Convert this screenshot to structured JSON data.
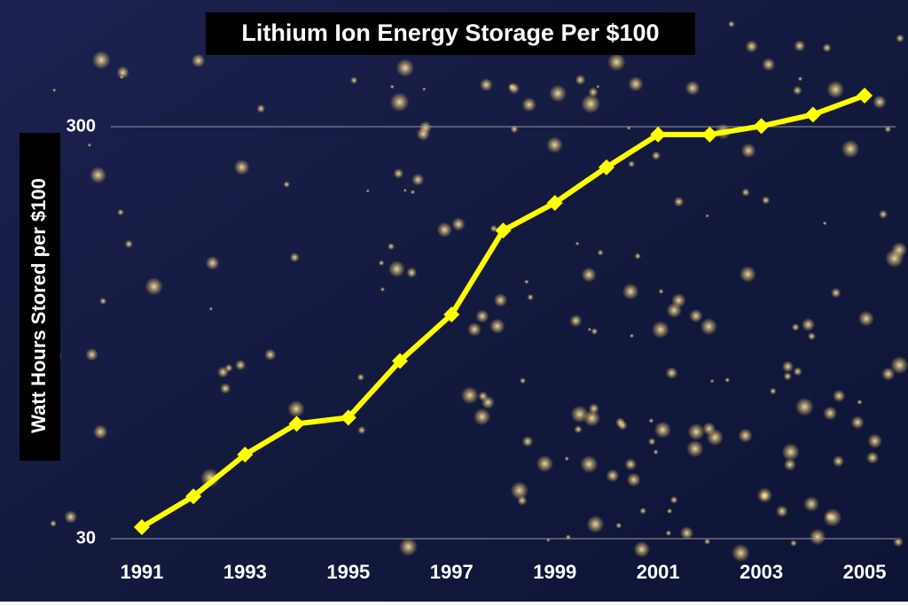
{
  "chart_data": {
    "type": "line",
    "title": "Lithium Ion Energy Storage Per $100",
    "y_label": "Watt Hours Stored per $100",
    "x": [
      1991,
      1992,
      1993,
      1994,
      1995,
      1996,
      1997,
      1998,
      1999,
      2000,
      2001,
      2002,
      2003,
      2004,
      2005
    ],
    "values": [
      32,
      38,
      48,
      57,
      59,
      81,
      105,
      168,
      196,
      239,
      287,
      287,
      301,
      321,
      357
    ],
    "color": "#ffff00",
    "xlim": [
      1990.4,
      2005.6
    ],
    "xticks": [
      1991,
      1993,
      1995,
      1997,
      1999,
      2001,
      2003,
      2005
    ],
    "ylim": [
      30,
      600
    ],
    "yticks": [
      30,
      300
    ],
    "log_y": true,
    "grid": true
  }
}
